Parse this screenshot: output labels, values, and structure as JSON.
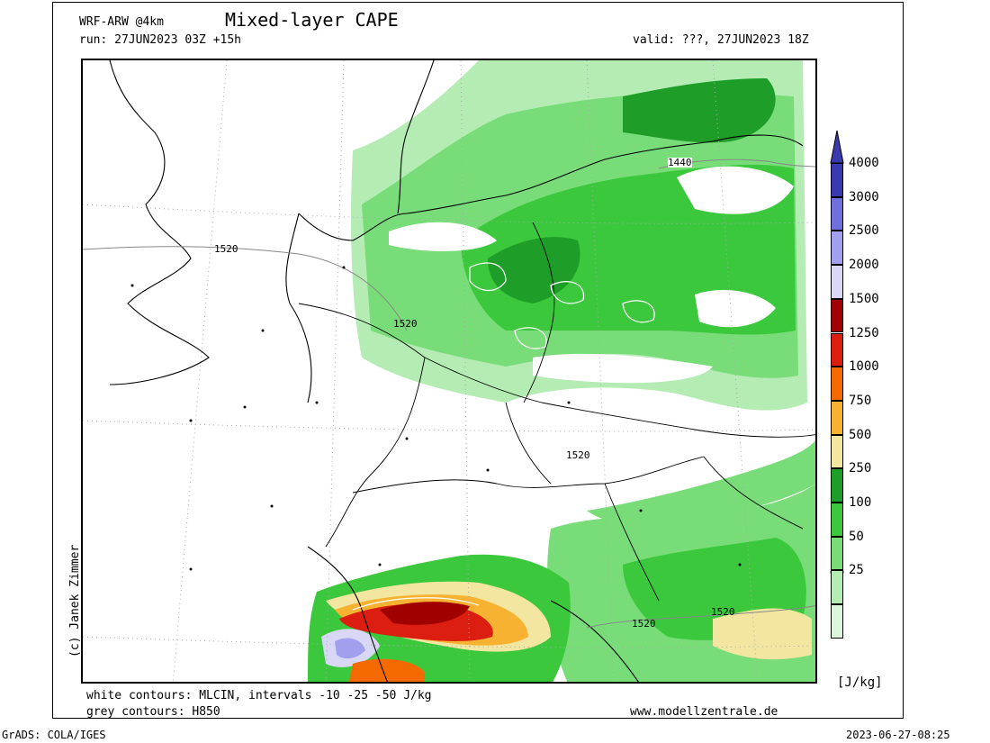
{
  "header": {
    "model": "WRF-ARW @4km",
    "title": "Mixed-layer CAPE",
    "run": "run: 27JUN2023 03Z +15h",
    "valid": "valid: ???, 27JUN2023 18Z"
  },
  "credit": "(c) Janek Zimmer",
  "contour_labels": [
    "1440",
    "1520",
    "1520",
    "1520",
    "1520",
    "1520"
  ],
  "legend_lines": {
    "white": "white contours: MLCIN, intervals -10 -25 -50 J/kg",
    "grey": "grey contours: H850"
  },
  "website": "www.modellzentrale.de",
  "colorbar": {
    "unit": "[J/kg]",
    "levels": [
      {
        "label": "4000",
        "color": "#3a3ab0"
      },
      {
        "label": "3000",
        "color": "#7070dc"
      },
      {
        "label": "2500",
        "color": "#a0a0ee"
      },
      {
        "label": "2000",
        "color": "#d8d8f6"
      },
      {
        "label": "1500",
        "color": "#a00000"
      },
      {
        "label": "1250",
        "color": "#dc1e10"
      },
      {
        "label": "1000",
        "color": "#f56a00"
      },
      {
        "label": "750",
        "color": "#f8b232"
      },
      {
        "label": "500",
        "color": "#f2e6a0"
      },
      {
        "label": "250",
        "color": "#1e9e28"
      },
      {
        "label": "100",
        "color": "#3cc83c"
      },
      {
        "label": "50",
        "color": "#78dc78"
      },
      {
        "label": "25",
        "color": "#b4ecb4"
      },
      {
        "label": "",
        "color": "#dcf6dc"
      }
    ]
  },
  "footer": {
    "left": "GrADS: COLA/IGES",
    "right": "2023-06-27-08:25"
  },
  "colors": {
    "green_light": "#b4ecb4",
    "green_mid": "#3cc83c",
    "green_dark": "#1e9e28",
    "orange": "#f56a00",
    "red_dark": "#a00000"
  }
}
